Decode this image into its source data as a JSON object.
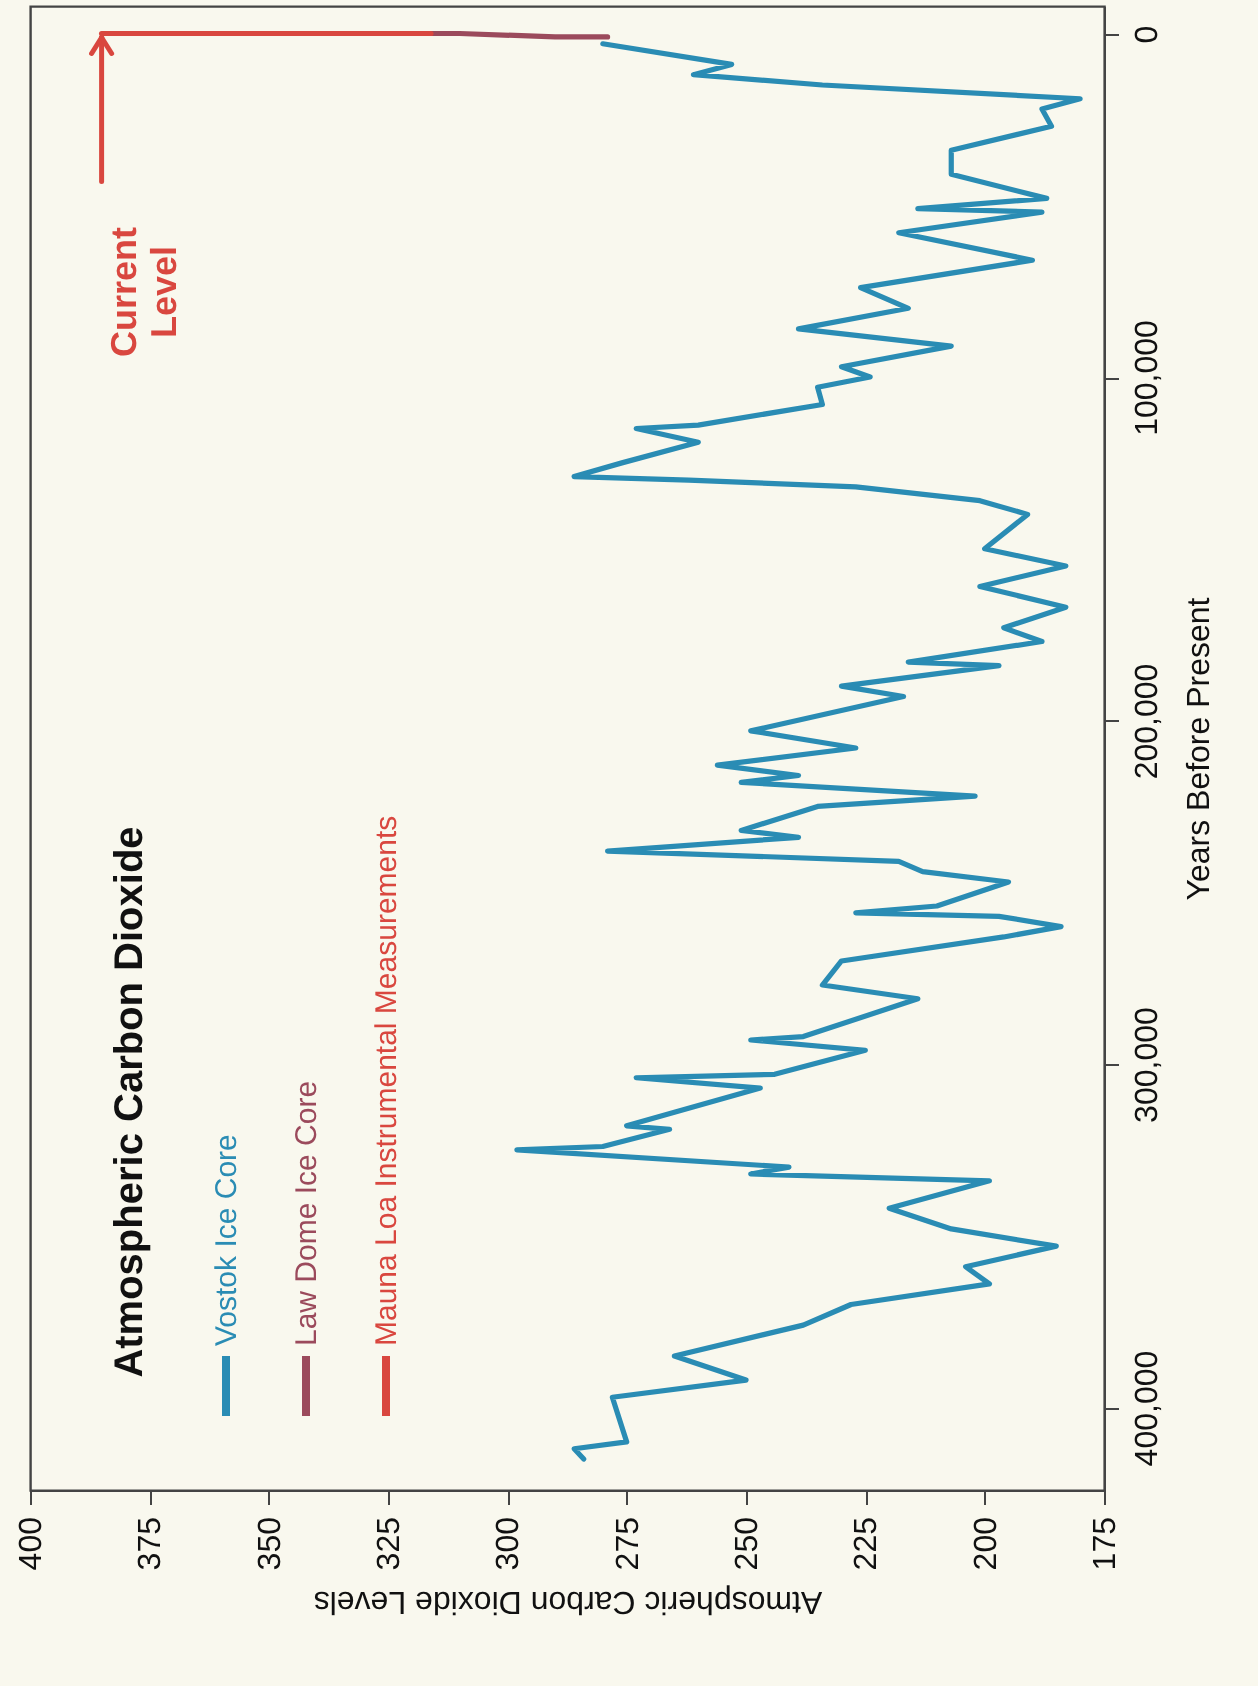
{
  "chart_data": {
    "type": "line",
    "title": "Atmospheric Carbon Dioxide",
    "xlabel": "Atmospheric Carbon Dioxide Levels",
    "ylabel": "Years Before Present",
    "xlim": [
      400,
      175
    ],
    "xticks": [
      400,
      375,
      350,
      325,
      300,
      275,
      250,
      225,
      200,
      175
    ],
    "ylim": [
      424000,
      -8000
    ],
    "yticks": [
      0,
      {
        "value": 100000,
        "label": "100,000"
      },
      {
        "value": 200000,
        "label": "200,000"
      },
      {
        "value": 300000,
        "label": "300,000"
      },
      {
        "value": 400000,
        "label": "400,000"
      }
    ],
    "grid": false,
    "legend": "bottom left",
    "annotations": [
      {
        "text": "Current Level",
        "x": 385,
        "y": 0
      }
    ],
    "series": [
      {
        "name": "Vostok Ice Core",
        "color": "#2a8cb4",
        "values": [
          3000,
          9000,
          12000,
          15000,
          19000,
          22000,
          27000,
          34000,
          41000,
          48000,
          51000,
          52000,
          58000,
          66000,
          74000,
          80000,
          86000,
          91000,
          97000,
          100000,
          103000,
          108000,
          114000,
          115000,
          119000,
          125000,
          129000,
          130000,
          132000,
          136000,
          140000,
          150000,
          155000,
          161000,
          167000,
          173000,
          177000,
          183000,
          184000,
          190000,
          193000,
          203000,
          208000,
          213000,
          216000,
          218000,
          222000,
          225000,
          232000,
          234000,
          238000,
          241000,
          244000,
          247000,
          254000,
          256000,
          257000,
          260000,
          263000,
          270000,
          277000,
          281000,
          292000,
          293000,
          296000,
          303000,
          304000,
          307000,
          314000,
          318000,
          319000,
          324000,
          325000,
          330000,
          332000,
          334000,
          342000,
          348000,
          353000,
          359000,
          364000,
          370000,
          376000,
          385000,
          392000,
          397000,
          410000,
          412000,
          415000
        ],
        "x": [
          280,
          253,
          261,
          234,
          180,
          188,
          186,
          207,
          207,
          187,
          214,
          188,
          218,
          190,
          226,
          216,
          239,
          207,
          230,
          224,
          235,
          234,
          260,
          273,
          260,
          276,
          286,
          262,
          227,
          201,
          191,
          200,
          183,
          201,
          183,
          196,
          188,
          216,
          197,
          230,
          217,
          249,
          227,
          256,
          239,
          251,
          202,
          235,
          251,
          239,
          279,
          218,
          213,
          195,
          210,
          227,
          197,
          184,
          196,
          230,
          234,
          214,
          238,
          249,
          225,
          244,
          273,
          247,
          265,
          275,
          266,
          280,
          298,
          241,
          249,
          199,
          220,
          207,
          185,
          204,
          199,
          228,
          238,
          265,
          250,
          278,
          275,
          286,
          284
        ]
      },
      {
        "name": "Law Dome Ice Core",
        "color": "#9b4a5c",
        "values": [
          1000,
          1000,
          1000,
          0,
          0
        ],
        "x": [
          279,
          281,
          290,
          310,
          331
        ]
      },
      {
        "name": "Mauna Loa Instrumental Measurements",
        "color": "#d9473f",
        "values": [
          0,
          0,
          0,
          0,
          0,
          0
        ],
        "x": [
          316,
          325,
          339,
          354,
          370,
          385
        ]
      }
    ]
  }
}
